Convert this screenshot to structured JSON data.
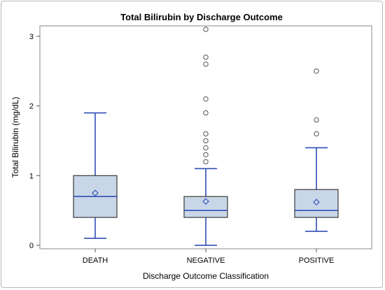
{
  "chart_data": {
    "type": "box",
    "title": "Total Bilirubin by Discharge Outcome",
    "xlabel": "Discharge Outcome Classification",
    "ylabel": "Total Bilirubin (mg/dL)",
    "ylim": [
      -0.05,
      3.15
    ],
    "yticks": [
      "0",
      "1",
      "2",
      "3"
    ],
    "categories": [
      "DEATH",
      "NEGATIVE",
      "POSITIVE"
    ],
    "boxes": [
      {
        "category": "DEATH",
        "whisker_low": 0.1,
        "q1": 0.4,
        "median": 0.7,
        "q3": 1.0,
        "whisker_high": 1.9,
        "mean": 0.75,
        "outliers": []
      },
      {
        "category": "NEGATIVE",
        "whisker_low": 0.0,
        "q1": 0.4,
        "median": 0.5,
        "q3": 0.7,
        "whisker_high": 1.1,
        "mean": 0.63,
        "outliers": [
          1.2,
          1.3,
          1.4,
          1.5,
          1.6,
          1.9,
          2.1,
          2.6,
          2.7,
          3.1
        ]
      },
      {
        "category": "POSITIVE",
        "whisker_low": 0.2,
        "q1": 0.4,
        "median": 0.5,
        "q3": 0.8,
        "whisker_high": 1.4,
        "mean": 0.62,
        "outliers": [
          1.6,
          1.8,
          2.5
        ]
      }
    ],
    "grid": false,
    "colors": {
      "box_fill": "#c9d6e8",
      "box_edge": "#3a3a3a",
      "whisker": "#2f4fb5",
      "median": "#2f4fb5",
      "mean_marker": "#2f4fb5",
      "outlier": "#555555"
    }
  }
}
